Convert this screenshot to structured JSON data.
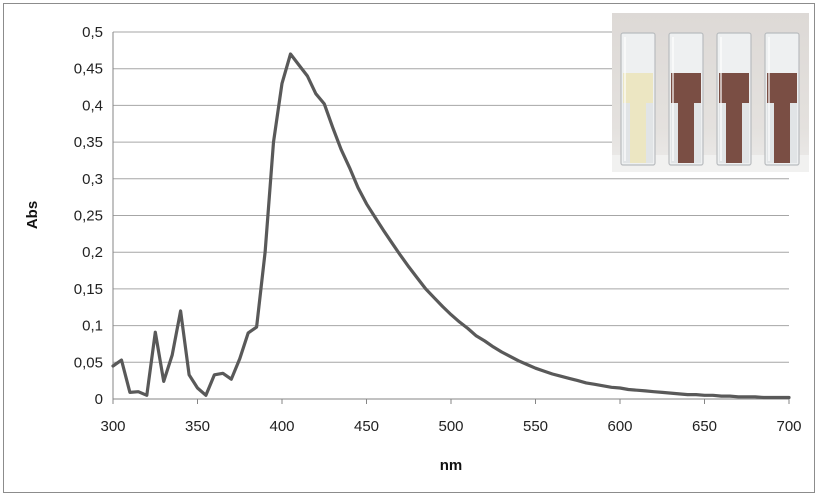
{
  "chart_data": {
    "type": "line",
    "title": "",
    "xlabel": "nm",
    "ylabel": "Abs",
    "xlim": [
      300,
      700
    ],
    "ylim": [
      0,
      0.5
    ],
    "x_ticks": [
      300,
      350,
      400,
      450,
      500,
      550,
      600,
      650,
      700
    ],
    "x_tick_labels": [
      "300",
      "350",
      "400",
      "450",
      "500",
      "550",
      "600",
      "650",
      "700"
    ],
    "y_ticks": [
      0,
      0.05,
      0.1,
      0.15,
      0.2,
      0.25,
      0.3,
      0.35,
      0.4,
      0.45,
      0.5
    ],
    "y_tick_labels": [
      "0",
      "0,05",
      "0,1",
      "0,15",
      "0,2",
      "0,25",
      "0,3",
      "0,35",
      "0,4",
      "0,45",
      "0,5"
    ],
    "grid": "horizontal",
    "legend": "none",
    "colors": {
      "line": "#595959",
      "grid": "#a6a6a6"
    },
    "series": [
      {
        "x": [
          300,
          305,
          310,
          315,
          320,
          325,
          330,
          335,
          340,
          345,
          350,
          355,
          360,
          365,
          370,
          375,
          380,
          385,
          390,
          395,
          400,
          405,
          410,
          415,
          420,
          425,
          430,
          435,
          440,
          445,
          450,
          455,
          460,
          465,
          470,
          475,
          480,
          485,
          490,
          495,
          500,
          505,
          510,
          515,
          520,
          525,
          530,
          535,
          540,
          545,
          550,
          555,
          560,
          565,
          570,
          575,
          580,
          585,
          590,
          595,
          600,
          605,
          610,
          615,
          620,
          625,
          630,
          635,
          640,
          645,
          650,
          655,
          660,
          665,
          670,
          675,
          680,
          685,
          690,
          695,
          700
        ],
        "y": [
          0.045,
          0.053,
          0.009,
          0.01,
          0.005,
          0.091,
          0.024,
          0.06,
          0.12,
          0.033,
          0.015,
          0.005,
          0.033,
          0.035,
          0.027,
          0.055,
          0.09,
          0.098,
          0.2,
          0.35,
          0.43,
          0.47,
          0.455,
          0.44,
          0.416,
          0.402,
          0.37,
          0.34,
          0.315,
          0.288,
          0.266,
          0.248,
          0.23,
          0.213,
          0.196,
          0.18,
          0.165,
          0.15,
          0.138,
          0.126,
          0.115,
          0.105,
          0.096,
          0.086,
          0.079,
          0.071,
          0.064,
          0.058,
          0.052,
          0.047,
          0.042,
          0.038,
          0.034,
          0.031,
          0.028,
          0.025,
          0.022,
          0.02,
          0.018,
          0.016,
          0.015,
          0.013,
          0.012,
          0.011,
          0.01,
          0.009,
          0.008,
          0.007,
          0.006,
          0.006,
          0.005,
          0.005,
          0.004,
          0.004,
          0.003,
          0.003,
          0.003,
          0.002,
          0.002,
          0.002,
          0.002
        ]
      }
    ]
  },
  "inset": {
    "cuvettes": [
      {
        "liquid_color": "#ece6c2"
      },
      {
        "liquid_color": "#7a4e44"
      },
      {
        "liquid_color": "#7a4e44"
      },
      {
        "liquid_color": "#7a4e44"
      }
    ]
  }
}
